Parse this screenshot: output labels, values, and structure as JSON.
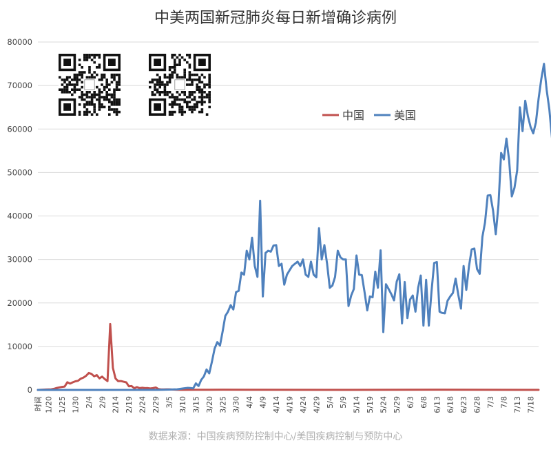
{
  "chart_data": {
    "type": "line",
    "title": "中美两国新冠肺炎每日新增确诊病例",
    "xlabel": "时间",
    "ylabel": "",
    "ylim": [
      0,
      80000
    ],
    "yticks": [
      0,
      10000,
      20000,
      30000,
      40000,
      50000,
      60000,
      70000,
      80000
    ],
    "x_range": [
      "1/16",
      "7/21"
    ],
    "xtick_labels": [
      "1/20",
      "1/25",
      "1/30",
      "2/4",
      "2/9",
      "2/14",
      "2/19",
      "2/24",
      "2/29",
      "3/5",
      "3/10",
      "3/15",
      "3/20",
      "3/25",
      "3/30",
      "4/4",
      "4/9",
      "4/14",
      "4/19",
      "4/24",
      "4/29",
      "5/4",
      "5/9",
      "5/14",
      "5/19",
      "5/24",
      "5/29",
      "6/3",
      "6/8",
      "6/13",
      "6/18",
      "6/23",
      "6/28",
      "7/3",
      "7/8",
      "7/13",
      "7/18"
    ],
    "grid": true,
    "legend": {
      "placement": "top-right",
      "entries": [
        "中国",
        "美国"
      ]
    },
    "series": [
      {
        "name": "中国",
        "color": "#c0504d",
        "points": [
          [
            "1/16",
            0
          ],
          [
            "1/19",
            100
          ],
          [
            "1/21",
            150
          ],
          [
            "1/22",
            260
          ],
          [
            "1/23",
            440
          ],
          [
            "1/24",
            580
          ],
          [
            "1/25",
            690
          ],
          [
            "1/26",
            770
          ],
          [
            "1/27",
            1770
          ],
          [
            "1/28",
            1460
          ],
          [
            "1/29",
            1740
          ],
          [
            "1/30",
            1980
          ],
          [
            "1/31",
            2100
          ],
          [
            "2/1",
            2590
          ],
          [
            "2/2",
            2830
          ],
          [
            "2/3",
            3240
          ],
          [
            "2/4",
            3890
          ],
          [
            "2/5",
            3690
          ],
          [
            "2/6",
            3140
          ],
          [
            "2/7",
            3400
          ],
          [
            "2/8",
            2660
          ],
          [
            "2/9",
            3060
          ],
          [
            "2/10",
            2480
          ],
          [
            "2/11",
            2020
          ],
          [
            "2/12",
            15150
          ],
          [
            "2/13",
            5090
          ],
          [
            "2/14",
            2640
          ],
          [
            "2/15",
            2010
          ],
          [
            "2/16",
            2050
          ],
          [
            "2/17",
            1890
          ],
          [
            "2/18",
            1750
          ],
          [
            "2/19",
            820
          ],
          [
            "2/20",
            890
          ],
          [
            "2/21",
            400
          ],
          [
            "2/22",
            650
          ],
          [
            "2/23",
            410
          ],
          [
            "2/24",
            510
          ],
          [
            "2/25",
            410
          ],
          [
            "2/26",
            430
          ],
          [
            "2/27",
            330
          ],
          [
            "2/28",
            430
          ],
          [
            "2/29",
            570
          ],
          [
            "3/1",
            200
          ],
          [
            "3/2",
            120
          ],
          [
            "3/3",
            120
          ],
          [
            "3/4",
            140
          ],
          [
            "3/5",
            140
          ],
          [
            "3/6",
            100
          ],
          [
            "3/8",
            40
          ],
          [
            "3/10",
            20
          ],
          [
            "3/15",
            30
          ],
          [
            "3/20",
            50
          ],
          [
            "3/25",
            70
          ],
          [
            "4/5",
            50
          ],
          [
            "5/4",
            10
          ],
          [
            "6/13",
            60
          ],
          [
            "7/21",
            20
          ]
        ]
      },
      {
        "name": "美国",
        "color": "#4f81bd",
        "points": [
          [
            "1/16",
            0
          ],
          [
            "3/1",
            20
          ],
          [
            "3/5",
            80
          ],
          [
            "3/8",
            150
          ],
          [
            "3/10",
            320
          ],
          [
            "3/11",
            400
          ],
          [
            "3/12",
            480
          ],
          [
            "3/13",
            450
          ],
          [
            "3/14",
            350
          ],
          [
            "3/15",
            1500
          ],
          [
            "3/16",
            900
          ],
          [
            "3/17",
            2300
          ],
          [
            "3/18",
            3100
          ],
          [
            "3/19",
            4700
          ],
          [
            "3/20",
            3800
          ],
          [
            "3/21",
            6500
          ],
          [
            "3/22",
            9500
          ],
          [
            "3/23",
            11000
          ],
          [
            "3/24",
            10200
          ],
          [
            "3/25",
            13500
          ],
          [
            "3/26",
            17000
          ],
          [
            "3/27",
            18000
          ],
          [
            "3/28",
            19500
          ],
          [
            "3/29",
            18500
          ],
          [
            "3/30",
            22500
          ],
          [
            "3/31",
            22800
          ],
          [
            "4/1",
            27000
          ],
          [
            "4/2",
            26500
          ],
          [
            "4/3",
            32000
          ],
          [
            "4/4",
            30000
          ],
          [
            "4/5",
            35000
          ],
          [
            "4/6",
            28500
          ],
          [
            "4/7",
            26000
          ],
          [
            "4/8",
            43500
          ],
          [
            "4/9",
            21500
          ],
          [
            "4/10",
            31500
          ],
          [
            "4/11",
            32000
          ],
          [
            "4/12",
            31800
          ],
          [
            "4/13",
            33200
          ],
          [
            "4/14",
            33300
          ],
          [
            "4/15",
            28500
          ],
          [
            "4/16",
            29000
          ],
          [
            "4/17",
            24200
          ],
          [
            "4/18",
            26500
          ],
          [
            "4/19",
            27500
          ],
          [
            "4/20",
            28500
          ],
          [
            "4/21",
            29000
          ],
          [
            "4/22",
            29500
          ],
          [
            "4/23",
            28500
          ],
          [
            "4/24",
            30000
          ],
          [
            "4/25",
            26500
          ],
          [
            "4/26",
            26000
          ],
          [
            "4/27",
            29500
          ],
          [
            "4/28",
            26500
          ],
          [
            "4/29",
            25900
          ],
          [
            "4/30",
            37200
          ],
          [
            "5/1",
            30000
          ],
          [
            "5/2",
            33300
          ],
          [
            "5/3",
            29000
          ],
          [
            "5/4",
            23500
          ],
          [
            "5/5",
            24000
          ],
          [
            "5/6",
            26000
          ],
          [
            "5/7",
            32000
          ],
          [
            "5/8",
            30500
          ],
          [
            "5/9",
            30000
          ],
          [
            "5/10",
            30000
          ],
          [
            "5/11",
            19300
          ],
          [
            "5/12",
            21700
          ],
          [
            "5/13",
            23200
          ],
          [
            "5/14",
            30900
          ],
          [
            "5/15",
            26500
          ],
          [
            "5/16",
            26400
          ],
          [
            "5/17",
            22500
          ],
          [
            "5/18",
            18300
          ],
          [
            "5/19",
            21500
          ],
          [
            "5/20",
            21300
          ],
          [
            "5/21",
            27200
          ],
          [
            "5/22",
            23500
          ],
          [
            "5/23",
            32100
          ],
          [
            "5/24",
            13300
          ],
          [
            "5/25",
            24300
          ],
          [
            "5/26",
            23200
          ],
          [
            "5/27",
            22000
          ],
          [
            "5/28",
            20600
          ],
          [
            "5/29",
            24900
          ],
          [
            "5/30",
            26600
          ],
          [
            "5/31",
            15300
          ],
          [
            "6/1",
            24800
          ],
          [
            "6/2",
            16500
          ],
          [
            "6/3",
            20800
          ],
          [
            "6/4",
            21700
          ],
          [
            "6/5",
            18000
          ],
          [
            "6/6",
            23500
          ],
          [
            "6/7",
            26300
          ],
          [
            "6/8",
            14800
          ],
          [
            "6/9",
            25300
          ],
          [
            "6/10",
            14800
          ],
          [
            "6/11",
            22600
          ],
          [
            "6/12",
            29200
          ],
          [
            "6/13",
            29400
          ],
          [
            "6/14",
            18000
          ],
          [
            "6/15",
            17700
          ],
          [
            "6/16",
            17600
          ],
          [
            "6/17",
            20500
          ],
          [
            "6/18",
            21500
          ],
          [
            "6/19",
            22300
          ],
          [
            "6/20",
            25600
          ],
          [
            "6/21",
            21900
          ],
          [
            "6/22",
            18700
          ],
          [
            "6/23",
            28500
          ],
          [
            "6/24",
            23000
          ],
          [
            "6/25",
            28400
          ],
          [
            "6/26",
            32300
          ],
          [
            "6/27",
            32500
          ],
          [
            "6/28",
            27800
          ],
          [
            "6/29",
            26700
          ],
          [
            "6/30",
            35200
          ],
          [
            "7/1",
            38500
          ],
          [
            "7/2",
            44700
          ],
          [
            "7/3",
            44800
          ],
          [
            "7/4",
            41200
          ],
          [
            "7/5",
            35800
          ],
          [
            "7/6",
            42500
          ],
          [
            "7/7",
            54500
          ],
          [
            "7/8",
            53000
          ],
          [
            "7/9",
            57800
          ],
          [
            "7/10",
            52800
          ],
          [
            "7/11",
            44500
          ],
          [
            "7/12",
            46500
          ],
          [
            "7/13",
            50500
          ],
          [
            "7/14",
            65000
          ],
          [
            "7/15",
            59500
          ],
          [
            "7/16",
            66500
          ],
          [
            "7/17",
            63000
          ],
          [
            "7/18",
            60500
          ],
          [
            "7/19",
            59000
          ],
          [
            "7/20",
            61500
          ],
          [
            "7/21",
            67000
          ],
          [
            "7/22",
            71500
          ],
          [
            "7/23",
            75000
          ],
          [
            "7/24",
            69000
          ],
          [
            "7/25",
            64500
          ],
          [
            "7/26",
            58000
          ]
        ]
      }
    ],
    "source": "数据来源：中国疾病预防控制中心/美国疾病控制与预防中心"
  },
  "images": {
    "qr_code_left": "qr-code",
    "qr_code_right": "qr-code"
  }
}
